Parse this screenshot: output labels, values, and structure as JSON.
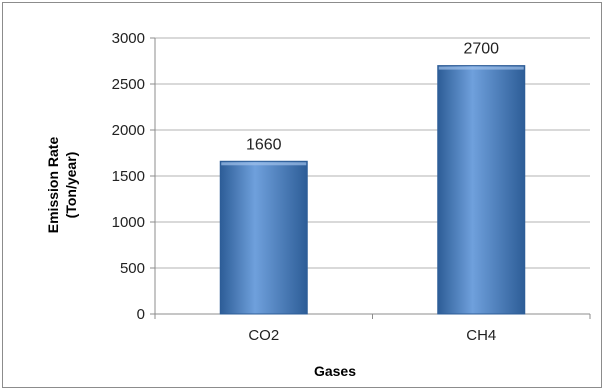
{
  "chart_data": {
    "type": "bar",
    "categories": [
      "CO2",
      "CH4"
    ],
    "values": [
      1660,
      2700
    ],
    "data_labels": [
      "1660",
      "2700"
    ],
    "xlabel": "Gases",
    "ylabel_lines": [
      "Emission Rate",
      "(Ton/year)"
    ],
    "ylim": [
      0,
      3000
    ],
    "yticks": [
      0,
      500,
      1000,
      1500,
      2000,
      2500,
      3000
    ],
    "grid": true,
    "legend": "none",
    "colors": {
      "bar": "#4a7ebb",
      "bar_light": "#6fa0dc",
      "bar_dark": "#2d5d97",
      "grid": "#b3b3b3"
    }
  }
}
